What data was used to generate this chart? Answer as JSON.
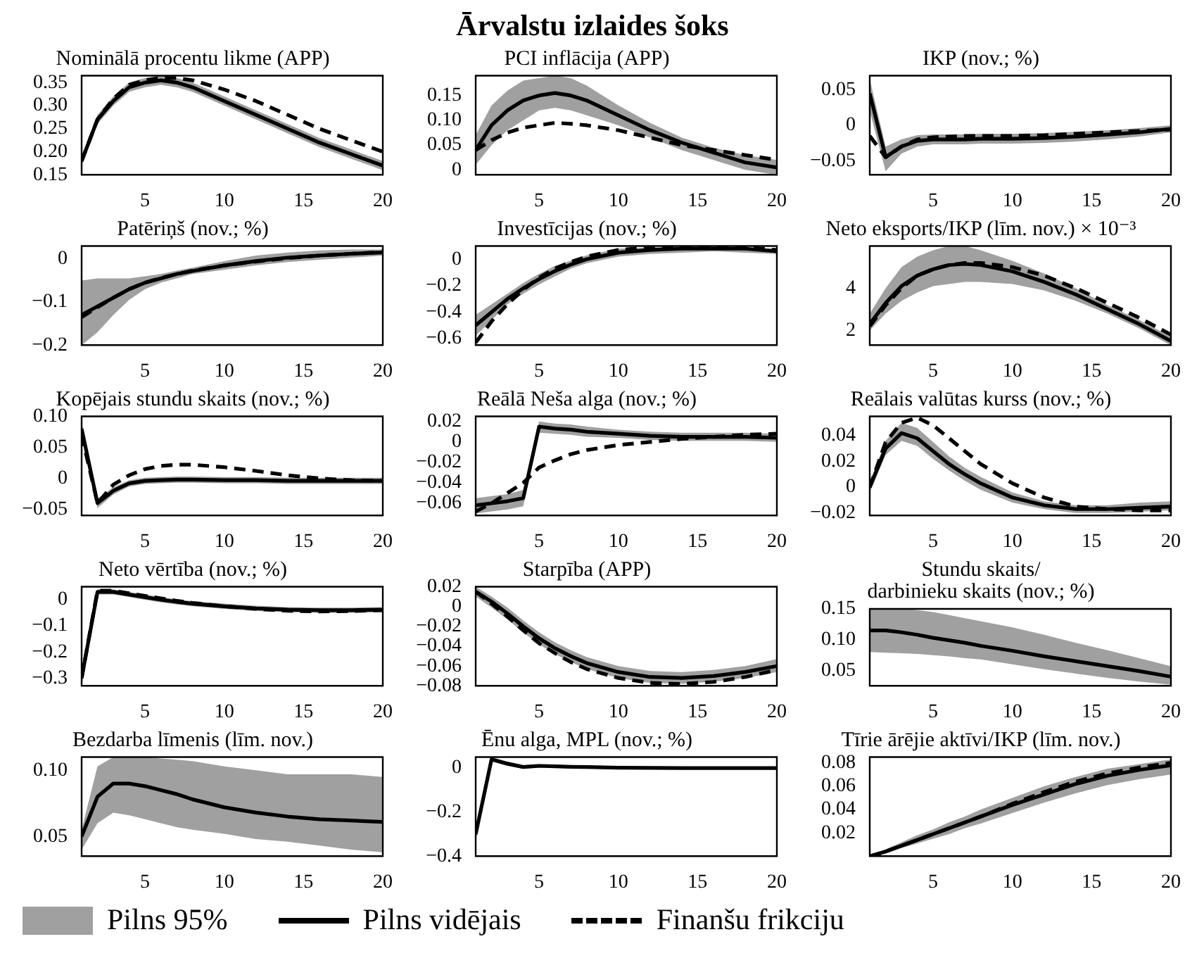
{
  "chart_data": [
    {
      "type": "other",
      "title": "Ārvalstu izlaides šoks"
    },
    {
      "type": "line",
      "title": "Nominālā procentu likme (APP)",
      "marker": "none",
      "x": [
        1,
        2,
        3,
        4,
        5,
        6,
        7,
        8,
        10,
        12,
        14,
        16,
        18,
        20
      ],
      "xlim": [
        1,
        20
      ],
      "xticks": [
        5,
        10,
        15,
        20
      ],
      "ylim": [
        0.15,
        0.365
      ],
      "yticks": [
        0.15,
        {
          "value": 0.2,
          "label": "0.20"
        },
        0.25,
        {
          "value": 0.3,
          "label": "0.30"
        },
        0.35
      ],
      "series": [
        {
          "type": "line",
          "line_style": "solid",
          "color": "#000000",
          "values": [
            0.18,
            0.27,
            0.31,
            0.34,
            0.35,
            0.355,
            0.35,
            0.34,
            0.31,
            0.28,
            0.25,
            0.22,
            0.195,
            0.17
          ],
          "lower": [
            0.17,
            0.26,
            0.3,
            0.33,
            0.34,
            0.345,
            0.34,
            0.33,
            0.3,
            0.27,
            0.24,
            0.21,
            0.185,
            0.16
          ],
          "upper": [
            0.19,
            0.28,
            0.32,
            0.35,
            0.36,
            0.365,
            0.36,
            0.35,
            0.32,
            0.29,
            0.26,
            0.23,
            0.205,
            0.18
          ]
        },
        {
          "type": "line",
          "line_style": "dashed",
          "color": "#000000",
          "values": [
            0.18,
            0.27,
            0.315,
            0.345,
            0.355,
            0.36,
            0.36,
            0.355,
            0.335,
            0.31,
            0.28,
            0.25,
            0.225,
            0.2
          ]
        }
      ]
    },
    {
      "type": "line",
      "title": "PCI inflācija (APP)",
      "marker": "none",
      "x": [
        1,
        2,
        3,
        4,
        5,
        6,
        7,
        8,
        10,
        12,
        14,
        16,
        18,
        20
      ],
      "xlim": [
        1,
        20
      ],
      "xticks": [
        5,
        10,
        15,
        20
      ],
      "ylim": [
        -0.01,
        0.19
      ],
      "yticks": [
        0,
        0.05,
        {
          "value": 0.1,
          "label": "0.10"
        },
        0.15
      ],
      "series": [
        {
          "type": "line",
          "line_style": "solid",
          "color": "#000000",
          "values": [
            0.04,
            0.09,
            0.12,
            0.14,
            0.15,
            0.155,
            0.15,
            0.14,
            0.11,
            0.08,
            0.055,
            0.035,
            0.015,
            0.005
          ],
          "lower": [
            0.01,
            0.05,
            0.08,
            0.1,
            0.12,
            0.125,
            0.12,
            0.11,
            0.09,
            0.065,
            0.04,
            0.02,
            0.0,
            -0.01
          ],
          "upper": [
            0.07,
            0.13,
            0.16,
            0.18,
            0.185,
            0.19,
            0.185,
            0.17,
            0.13,
            0.095,
            0.065,
            0.045,
            0.03,
            0.02
          ]
        },
        {
          "type": "line",
          "line_style": "dashed",
          "color": "#000000",
          "values": [
            0.04,
            0.06,
            0.075,
            0.085,
            0.09,
            0.095,
            0.093,
            0.09,
            0.08,
            0.065,
            0.05,
            0.04,
            0.03,
            0.02
          ]
        }
      ]
    },
    {
      "type": "line",
      "title": "IKP (nov.; %)",
      "marker": "none",
      "x": [
        1,
        2,
        3,
        4,
        5,
        6,
        7,
        8,
        10,
        12,
        14,
        16,
        18,
        20
      ],
      "xlim": [
        1,
        20
      ],
      "xticks": [
        5,
        10,
        15,
        20
      ],
      "ylim": [
        -0.07,
        0.07
      ],
      "yticks": [
        {
          "value": -0.05,
          "label": "−0.05"
        },
        0,
        0.05
      ],
      "series": [
        {
          "type": "line",
          "line_style": "solid",
          "color": "#000000",
          "values": [
            0.045,
            -0.045,
            -0.03,
            -0.022,
            -0.02,
            -0.02,
            -0.02,
            -0.019,
            -0.019,
            -0.018,
            -0.016,
            -0.013,
            -0.01,
            -0.005
          ],
          "lower": [
            0.02,
            -0.065,
            -0.04,
            -0.03,
            -0.027,
            -0.027,
            -0.027,
            -0.026,
            -0.026,
            -0.025,
            -0.023,
            -0.02,
            -0.016,
            -0.01
          ],
          "upper": [
            0.065,
            -0.03,
            -0.02,
            -0.014,
            -0.013,
            -0.013,
            -0.013,
            -0.012,
            -0.012,
            -0.011,
            -0.009,
            -0.007,
            -0.004,
            0.0
          ]
        },
        {
          "type": "line",
          "line_style": "dashed",
          "color": "#000000",
          "values": [
            -0.015,
            -0.045,
            -0.03,
            -0.02,
            -0.017,
            -0.016,
            -0.015,
            -0.015,
            -0.015,
            -0.014,
            -0.012,
            -0.01,
            -0.008,
            -0.006
          ]
        }
      ]
    },
    {
      "type": "line",
      "title": "Patēriņš (nov.; %)",
      "marker": "none",
      "x": [
        1,
        2,
        3,
        4,
        5,
        6,
        7,
        8,
        10,
        12,
        14,
        16,
        18,
        20
      ],
      "xlim": [
        1,
        20
      ],
      "xticks": [
        5,
        10,
        15,
        20
      ],
      "ylim": [
        -0.2,
        0.03
      ],
      "yticks": [
        {
          "value": -0.2,
          "label": "−0.2"
        },
        {
          "value": -0.1,
          "label": "−0.1"
        },
        0
      ],
      "series": [
        {
          "type": "line",
          "line_style": "solid",
          "color": "#000000",
          "values": [
            -0.13,
            -0.11,
            -0.09,
            -0.07,
            -0.055,
            -0.045,
            -0.035,
            -0.028,
            -0.015,
            -0.005,
            0.003,
            0.008,
            0.012,
            0.015
          ],
          "lower": [
            -0.2,
            -0.17,
            -0.13,
            -0.095,
            -0.07,
            -0.055,
            -0.045,
            -0.035,
            -0.025,
            -0.015,
            -0.007,
            -0.002,
            0.003,
            0.008
          ],
          "upper": [
            -0.05,
            -0.045,
            -0.045,
            -0.045,
            -0.04,
            -0.035,
            -0.027,
            -0.02,
            -0.005,
            0.008,
            0.015,
            0.02,
            0.022,
            0.022
          ]
        },
        {
          "type": "line",
          "line_style": "dashed",
          "color": "#000000",
          "values": [
            -0.135,
            -0.112,
            -0.09,
            -0.07,
            -0.055,
            -0.044,
            -0.035,
            -0.027,
            -0.015,
            -0.006,
            0.002,
            0.008,
            0.012,
            0.016
          ]
        }
      ]
    },
    {
      "type": "line",
      "title": "Investīcijas (nov.; %)",
      "marker": "none",
      "x": [
        1,
        2,
        3,
        4,
        5,
        6,
        7,
        8,
        10,
        12,
        14,
        16,
        18,
        20
      ],
      "xlim": [
        1,
        20
      ],
      "xticks": [
        5,
        10,
        15,
        20
      ],
      "ylim": [
        -0.65,
        0.1
      ],
      "yticks": [
        {
          "value": -0.6,
          "label": "−0.6"
        },
        {
          "value": -0.4,
          "label": "−0.4"
        },
        {
          "value": -0.2,
          "label": "−0.2"
        },
        0
      ],
      "series": [
        {
          "type": "line",
          "line_style": "solid",
          "color": "#000000",
          "values": [
            -0.5,
            -0.4,
            -0.3,
            -0.22,
            -0.15,
            -0.09,
            -0.04,
            0.0,
            0.05,
            0.07,
            0.08,
            0.08,
            0.08,
            0.06
          ],
          "lower": [
            -0.58,
            -0.46,
            -0.34,
            -0.26,
            -0.19,
            -0.13,
            -0.07,
            -0.03,
            0.02,
            0.04,
            0.05,
            0.06,
            0.05,
            0.04
          ],
          "upper": [
            -0.42,
            -0.34,
            -0.26,
            -0.18,
            -0.11,
            -0.05,
            -0.01,
            0.03,
            0.08,
            0.09,
            0.095,
            0.095,
            0.09,
            0.08
          ]
        },
        {
          "type": "line",
          "line_style": "dashed",
          "color": "#000000",
          "values": [
            -0.63,
            -0.47,
            -0.34,
            -0.23,
            -0.14,
            -0.07,
            -0.02,
            0.02,
            0.07,
            0.09,
            0.095,
            0.095,
            0.09,
            0.07
          ]
        }
      ]
    },
    {
      "type": "line",
      "title": "Neto eksports/IKP (līm. nov.) × 10⁻³",
      "marker": "none",
      "x": [
        1,
        2,
        3,
        4,
        5,
        6,
        7,
        8,
        10,
        12,
        14,
        16,
        18,
        20
      ],
      "xlim": [
        1,
        20
      ],
      "xticks": [
        5,
        10,
        15,
        20
      ],
      "ylim": [
        1.3,
        6
      ],
      "yticks": [
        2,
        4
      ],
      "series": [
        {
          "type": "line",
          "line_style": "solid",
          "color": "#000000",
          "values": [
            2.3,
            3.3,
            4.1,
            4.6,
            4.9,
            5.1,
            5.15,
            5.1,
            4.8,
            4.3,
            3.7,
            3.0,
            2.3,
            1.5
          ],
          "lower": [
            2.0,
            2.8,
            3.4,
            3.8,
            4.1,
            4.2,
            4.3,
            4.3,
            4.2,
            3.9,
            3.4,
            2.8,
            2.1,
            1.3
          ],
          "upper": [
            2.8,
            4.0,
            5.0,
            5.5,
            5.8,
            6.0,
            6.0,
            5.8,
            5.3,
            4.7,
            4.0,
            3.2,
            2.5,
            1.7
          ]
        },
        {
          "type": "line",
          "line_style": "dashed",
          "color": "#000000",
          "values": [
            2.2,
            3.2,
            4.0,
            4.6,
            4.9,
            5.1,
            5.2,
            5.2,
            5.0,
            4.6,
            4.0,
            3.3,
            2.6,
            1.8
          ]
        }
      ]
    },
    {
      "type": "line",
      "title": "Kopējais stundu skaits (nov.; %)",
      "marker": "none",
      "x": [
        1,
        2,
        3,
        4,
        5,
        6,
        7,
        8,
        10,
        12,
        14,
        16,
        18,
        20
      ],
      "xlim": [
        1,
        20
      ],
      "xticks": [
        5,
        10,
        15,
        20
      ],
      "ylim": [
        -0.06,
        0.1
      ],
      "yticks": [
        {
          "value": -0.05,
          "label": "−0.05"
        },
        0,
        0.05,
        {
          "value": 0.1,
          "label": "0.10"
        }
      ],
      "series": [
        {
          "type": "line",
          "line_style": "solid",
          "color": "#000000",
          "values": [
            0.08,
            -0.04,
            -0.02,
            -0.008,
            -0.004,
            -0.003,
            -0.002,
            -0.002,
            -0.003,
            -0.003,
            -0.004,
            -0.004,
            -0.004,
            -0.004
          ],
          "lower": [
            0.07,
            -0.048,
            -0.026,
            -0.013,
            -0.009,
            -0.008,
            -0.007,
            -0.007,
            -0.008,
            -0.008,
            -0.009,
            -0.009,
            -0.009,
            -0.009
          ],
          "upper": [
            0.09,
            -0.033,
            -0.014,
            -0.003,
            0.001,
            0.002,
            0.003,
            0.003,
            0.002,
            0.002,
            0.001,
            0.001,
            0.001,
            0.001
          ]
        },
        {
          "type": "line",
          "line_style": "dashed",
          "color": "#000000",
          "values": [
            0.07,
            -0.04,
            -0.01,
            0.005,
            0.015,
            0.02,
            0.022,
            0.022,
            0.018,
            0.012,
            0.005,
            0.0,
            -0.003,
            -0.004
          ]
        }
      ]
    },
    {
      "type": "line",
      "title": "Reālā Neša alga (nov.; %)",
      "marker": "none",
      "x": [
        1,
        2,
        3,
        4,
        5,
        6,
        7,
        8,
        10,
        12,
        14,
        16,
        18,
        20
      ],
      "xlim": [
        1,
        20
      ],
      "xticks": [
        5,
        10,
        15,
        20
      ],
      "ylim": [
        -0.072,
        0.025
      ],
      "yticks": [
        {
          "value": -0.06,
          "label": "−0.06"
        },
        {
          "value": -0.04,
          "label": "−0.04"
        },
        {
          "value": -0.02,
          "label": "−0.02"
        },
        0,
        0.02
      ],
      "series": [
        {
          "type": "line",
          "line_style": "solid",
          "color": "#000000",
          "values": [
            -0.062,
            -0.06,
            -0.058,
            -0.055,
            0.015,
            0.013,
            0.012,
            0.01,
            0.008,
            0.006,
            0.005,
            0.005,
            0.005,
            0.004
          ],
          "lower": [
            -0.07,
            -0.068,
            -0.066,
            -0.063,
            0.009,
            0.008,
            0.007,
            0.005,
            0.004,
            0.002,
            0.001,
            0.001,
            0.001,
            0.0
          ],
          "upper": [
            -0.055,
            -0.053,
            -0.051,
            -0.047,
            0.02,
            0.018,
            0.017,
            0.015,
            0.012,
            0.01,
            0.009,
            0.009,
            0.009,
            0.008
          ]
        },
        {
          "type": "line",
          "line_style": "dashed",
          "color": "#000000",
          "values": [
            -0.068,
            -0.06,
            -0.05,
            -0.04,
            -0.025,
            -0.018,
            -0.012,
            -0.008,
            -0.003,
            0.0,
            0.003,
            0.005,
            0.007,
            0.008
          ]
        }
      ]
    },
    {
      "type": "line",
      "title": "Reālais valūtas kurss (nov.; %)",
      "marker": "none",
      "x": [
        1,
        2,
        3,
        4,
        5,
        6,
        7,
        8,
        10,
        12,
        14,
        16,
        18,
        20
      ],
      "xlim": [
        1,
        20
      ],
      "xticks": [
        5,
        10,
        15,
        20
      ],
      "ylim": [
        -0.022,
        0.055
      ],
      "yticks": [
        {
          "value": -0.02,
          "label": "−0.02"
        },
        0,
        0.02,
        0.04
      ],
      "series": [
        {
          "type": "line",
          "line_style": "solid",
          "color": "#000000",
          "values": [
            0.0,
            0.03,
            0.042,
            0.038,
            0.028,
            0.018,
            0.01,
            0.003,
            -0.008,
            -0.014,
            -0.017,
            -0.017,
            -0.016,
            -0.015
          ],
          "lower": [
            -0.004,
            0.025,
            0.036,
            0.032,
            0.022,
            0.013,
            0.005,
            -0.002,
            -0.012,
            -0.017,
            -0.02,
            -0.02,
            -0.019,
            -0.018
          ],
          "upper": [
            0.004,
            0.036,
            0.05,
            0.046,
            0.035,
            0.024,
            0.015,
            0.008,
            -0.004,
            -0.011,
            -0.014,
            -0.014,
            -0.012,
            -0.011
          ]
        },
        {
          "type": "line",
          "line_style": "dashed",
          "color": "#000000",
          "values": [
            0.0,
            0.035,
            0.05,
            0.054,
            0.048,
            0.038,
            0.028,
            0.018,
            0.003,
            -0.008,
            -0.015,
            -0.017,
            -0.018,
            -0.018
          ]
        }
      ]
    },
    {
      "type": "line",
      "title": "Neto vērtība (nov.; %)",
      "marker": "none",
      "x": [
        1,
        2,
        3,
        4,
        5,
        6,
        7,
        8,
        10,
        12,
        14,
        16,
        18,
        20
      ],
      "xlim": [
        1,
        20
      ],
      "xticks": [
        5,
        10,
        15,
        20
      ],
      "ylim": [
        -0.33,
        0.05
      ],
      "yticks": [
        {
          "value": -0.3,
          "label": "−0.3"
        },
        {
          "value": -0.2,
          "label": "−0.2"
        },
        {
          "value": -0.1,
          "label": "−0.1"
        },
        0
      ],
      "series": [
        {
          "type": "line",
          "line_style": "solid",
          "color": "#000000",
          "values": [
            -0.3,
            0.03,
            0.03,
            0.02,
            0.01,
            0.0,
            -0.008,
            -0.015,
            -0.025,
            -0.033,
            -0.038,
            -0.04,
            -0.04,
            -0.038
          ],
          "lower": [
            -0.33,
            0.02,
            0.02,
            0.01,
            0.0,
            -0.01,
            -0.018,
            -0.025,
            -0.035,
            -0.043,
            -0.048,
            -0.05,
            -0.05,
            -0.048
          ],
          "upper": [
            -0.27,
            0.04,
            0.04,
            0.03,
            0.02,
            0.01,
            0.002,
            -0.005,
            -0.015,
            -0.023,
            -0.028,
            -0.03,
            -0.03,
            -0.028
          ]
        },
        {
          "type": "line",
          "line_style": "dashed",
          "color": "#000000",
          "values": [
            -0.3,
            0.035,
            0.035,
            0.025,
            0.015,
            0.005,
            -0.004,
            -0.012,
            -0.025,
            -0.035,
            -0.042,
            -0.045,
            -0.043,
            -0.04
          ]
        }
      ]
    },
    {
      "type": "line",
      "title": "Starpība (APP)",
      "marker": "none",
      "x": [
        1,
        2,
        3,
        4,
        5,
        6,
        7,
        8,
        10,
        12,
        14,
        16,
        18,
        20
      ],
      "xlim": [
        1,
        20
      ],
      "xticks": [
        5,
        10,
        15,
        20
      ],
      "ylim": [
        -0.08,
        0.02
      ],
      "yticks": [
        {
          "value": -0.08,
          "label": "−0.08"
        },
        {
          "value": -0.06,
          "label": "−0.06"
        },
        {
          "value": -0.04,
          "label": "−0.04"
        },
        {
          "value": -0.02,
          "label": "−0.02"
        },
        0,
        0.02
      ],
      "series": [
        {
          "type": "line",
          "line_style": "solid",
          "color": "#000000",
          "values": [
            0.015,
            0.005,
            -0.007,
            -0.02,
            -0.032,
            -0.042,
            -0.05,
            -0.057,
            -0.066,
            -0.071,
            -0.072,
            -0.07,
            -0.066,
            -0.06
          ],
          "lower": [
            0.01,
            -0.001,
            -0.013,
            -0.026,
            -0.038,
            -0.048,
            -0.056,
            -0.063,
            -0.072,
            -0.077,
            -0.078,
            -0.076,
            -0.072,
            -0.066
          ],
          "upper": [
            0.02,
            0.01,
            -0.001,
            -0.014,
            -0.026,
            -0.036,
            -0.044,
            -0.051,
            -0.06,
            -0.065,
            -0.066,
            -0.064,
            -0.06,
            -0.053
          ]
        },
        {
          "type": "line",
          "line_style": "dashed",
          "color": "#000000",
          "values": [
            0.015,
            0.003,
            -0.01,
            -0.024,
            -0.037,
            -0.047,
            -0.056,
            -0.063,
            -0.072,
            -0.077,
            -0.078,
            -0.076,
            -0.071,
            -0.064
          ]
        }
      ]
    },
    {
      "type": "line",
      "title": "Stundu skaits/\ndarbinieku skaits (nov.; %)",
      "marker": "none",
      "x": [
        1,
        2,
        3,
        4,
        5,
        6,
        7,
        8,
        10,
        12,
        14,
        16,
        18,
        20
      ],
      "xlim": [
        1,
        20
      ],
      "xticks": [
        5,
        10,
        15,
        20
      ],
      "ylim": [
        0.025,
        0.15
      ],
      "yticks": [
        0.05,
        {
          "value": 0.1,
          "label": "0.10"
        },
        0.15
      ],
      "series": [
        {
          "type": "line",
          "line_style": "solid",
          "color": "#000000",
          "values": [
            0.115,
            0.115,
            0.112,
            0.108,
            0.103,
            0.099,
            0.095,
            0.09,
            0.082,
            0.073,
            0.065,
            0.057,
            0.049,
            0.04
          ],
          "lower": [
            0.08,
            0.079,
            0.078,
            0.077,
            0.075,
            0.073,
            0.07,
            0.068,
            0.06,
            0.052,
            0.045,
            0.038,
            0.032,
            0.027
          ],
          "upper": [
            0.15,
            0.15,
            0.15,
            0.148,
            0.145,
            0.14,
            0.135,
            0.13,
            0.12,
            0.108,
            0.095,
            0.083,
            0.07,
            0.057
          ]
        }
      ]
    },
    {
      "type": "line",
      "title": "Bezdarba līmenis (līm. nov.)",
      "marker": "none",
      "x": [
        1,
        2,
        3,
        4,
        5,
        6,
        7,
        8,
        10,
        12,
        14,
        16,
        18,
        20
      ],
      "xlim": [
        1,
        20
      ],
      "xticks": [
        5,
        10,
        15,
        20
      ],
      "ylim": [
        0.035,
        0.11
      ],
      "yticks": [
        0.05,
        {
          "value": 0.1,
          "label": "0.10"
        }
      ],
      "series": [
        {
          "type": "line",
          "line_style": "solid",
          "color": "#000000",
          "values": [
            0.05,
            0.08,
            0.09,
            0.09,
            0.088,
            0.085,
            0.082,
            0.078,
            0.072,
            0.068,
            0.065,
            0.063,
            0.062,
            0.061
          ],
          "lower": [
            0.04,
            0.06,
            0.068,
            0.066,
            0.063,
            0.06,
            0.057,
            0.055,
            0.052,
            0.048,
            0.046,
            0.043,
            0.04,
            0.038
          ],
          "upper": [
            0.055,
            0.103,
            0.11,
            0.11,
            0.11,
            0.109,
            0.108,
            0.107,
            0.103,
            0.1,
            0.097,
            0.097,
            0.097,
            0.095
          ]
        }
      ]
    },
    {
      "type": "line",
      "title": "Ēnu alga, MPL (nov.; %)",
      "marker": "none",
      "x": [
        1,
        2,
        3,
        4,
        5,
        6,
        7,
        8,
        10,
        12,
        14,
        16,
        18,
        20
      ],
      "xlim": [
        1,
        20
      ],
      "xticks": [
        5,
        10,
        15,
        20
      ],
      "ylim": [
        -0.4,
        0.05
      ],
      "yticks": [
        {
          "value": -0.4,
          "label": "−0.4"
        },
        {
          "value": -0.2,
          "label": "−0.2"
        },
        0
      ],
      "series": [
        {
          "type": "line",
          "line_style": "solid",
          "color": "#000000",
          "values": [
            -0.3,
            0.04,
            0.02,
            0.005,
            0.01,
            0.008,
            0.006,
            0.005,
            0.002,
            0.001,
            0.0,
            0.0,
            0.0,
            0.0
          ],
          "lower": [
            -0.33,
            0.03,
            0.01,
            -0.003,
            0.003,
            0.001,
            -0.001,
            -0.002,
            -0.005,
            -0.006,
            -0.007,
            -0.007,
            -0.007,
            -0.007
          ],
          "upper": [
            -0.27,
            0.05,
            0.03,
            0.013,
            0.017,
            0.015,
            0.013,
            0.012,
            0.009,
            0.008,
            0.007,
            0.007,
            0.007,
            0.007
          ]
        }
      ]
    },
    {
      "type": "line",
      "title": "Tīrie ārējie aktīvi/IKP (līm. nov.)",
      "marker": "none",
      "legend": "bottom",
      "annotations": [
        "Pilns 95%"
      ],
      "x": [
        1,
        2,
        3,
        4,
        5,
        6,
        7,
        8,
        10,
        12,
        14,
        16,
        18,
        20
      ],
      "xlim": [
        1,
        20
      ],
      "xticks": [
        5,
        10,
        15,
        20
      ],
      "ylim": [
        0,
        0.085
      ],
      "yticks": [
        0.02,
        0.04,
        0.06,
        0.08
      ],
      "series": [
        {
          "name": "Pilns vidējais",
          "type": "line",
          "line_style": "solid",
          "color": "#000000",
          "values": [
            0.0,
            0.004,
            0.009,
            0.014,
            0.019,
            0.024,
            0.029,
            0.034,
            0.044,
            0.053,
            0.062,
            0.069,
            0.074,
            0.078
          ],
          "lower": [
            0.0,
            0.003,
            0.007,
            0.011,
            0.015,
            0.019,
            0.024,
            0.028,
            0.037,
            0.046,
            0.054,
            0.061,
            0.066,
            0.07
          ],
          "upper": [
            0.001,
            0.006,
            0.012,
            0.018,
            0.023,
            0.029,
            0.034,
            0.04,
            0.05,
            0.06,
            0.068,
            0.075,
            0.079,
            0.083
          ]
        },
        {
          "name": "Finanšu frikciju",
          "type": "line",
          "line_style": "dashed",
          "color": "#000000",
          "values": [
            0.0,
            0.004,
            0.009,
            0.014,
            0.019,
            0.024,
            0.029,
            0.034,
            0.045,
            0.055,
            0.064,
            0.071,
            0.076,
            0.08
          ]
        }
      ]
    }
  ]
}
